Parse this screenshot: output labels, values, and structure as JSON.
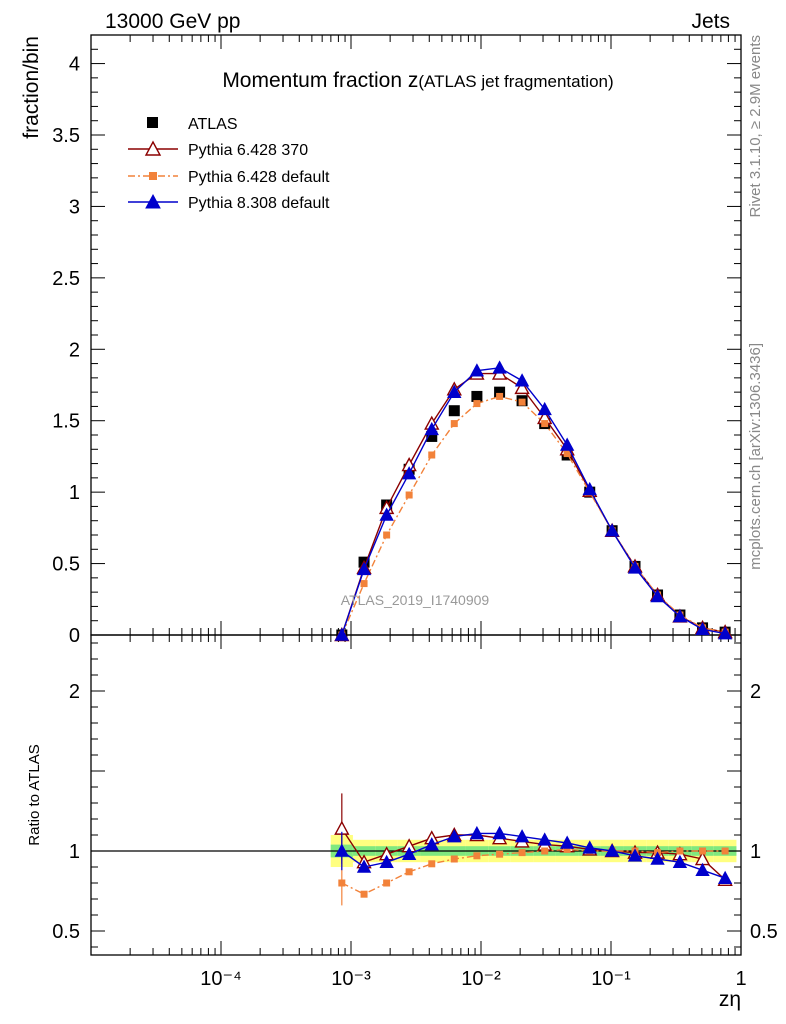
{
  "header": {
    "left": "13000 GeV pp",
    "right": "Jets"
  },
  "side_labels": {
    "rivet": "Rivet 3.1.10, ≥ 2.9M events",
    "mcplots": "mcplots.cern.ch [arXiv:1306.3436]"
  },
  "watermark": "ATLAS_2019_I1740909",
  "colors": {
    "atlas": "#000000",
    "pythia6_370": "#8b0000",
    "pythia6_default": "#f2823a",
    "pythia8_default": "#0000cc",
    "band_inner": "#7fe87f",
    "band_outer": "#ffff80"
  },
  "chart_data": [
    {
      "type": "line",
      "panel": "main",
      "title_main": "Momentum fraction z",
      "title_sub": "(ATLAS jet fragmentation)",
      "ylabel": "fraction/bin",
      "xscale": "log",
      "xlim": [
        1e-05,
        1
      ],
      "ylim": [
        0,
        4.2
      ],
      "yticks": [
        0,
        0.5,
        1,
        1.5,
        2,
        2.5,
        3,
        3.5,
        4
      ],
      "ytick_labels": [
        "0",
        "0.5",
        "1",
        "1.5",
        "2",
        "2.5",
        "3",
        "3.5",
        "4"
      ],
      "legend_position": "top-left",
      "x": [
        0.00085,
        0.00126,
        0.00188,
        0.0028,
        0.00418,
        0.00623,
        0.0093,
        0.0139,
        0.0207,
        0.0309,
        0.046,
        0.0686,
        0.102,
        0.153,
        0.228,
        0.339,
        0.506,
        0.755
      ],
      "series": [
        {
          "name": "ATLAS",
          "values": [
            0.0,
            0.51,
            0.91,
            1.16,
            1.39,
            1.57,
            1.67,
            1.7,
            1.64,
            1.48,
            1.26,
            1.0,
            0.73,
            0.48,
            0.28,
            0.14,
            0.05,
            0.02
          ]
        },
        {
          "name": "Pythia 6.428 370",
          "values": [
            0.0,
            0.47,
            0.89,
            1.19,
            1.48,
            1.72,
            1.83,
            1.83,
            1.73,
            1.52,
            1.3,
            1.01,
            0.73,
            0.48,
            0.28,
            0.13,
            0.05,
            0.02
          ]
        },
        {
          "name": "Pythia 6.428 default",
          "values": [
            0.0,
            0.36,
            0.7,
            0.98,
            1.26,
            1.48,
            1.62,
            1.67,
            1.63,
            1.48,
            1.27,
            1.0,
            0.73,
            0.48,
            0.28,
            0.14,
            0.05,
            0.02
          ]
        },
        {
          "name": "Pythia 8.308 default",
          "values": [
            0.0,
            0.46,
            0.84,
            1.13,
            1.44,
            1.7,
            1.85,
            1.87,
            1.78,
            1.58,
            1.33,
            1.02,
            0.73,
            0.47,
            0.27,
            0.13,
            0.04,
            0.01
          ]
        }
      ]
    },
    {
      "type": "line",
      "panel": "ratio",
      "ylabel": "Ratio to ATLAS",
      "xlabel": "zη",
      "xscale": "log",
      "xlim": [
        1e-05,
        1
      ],
      "ylim": [
        0.35,
        2.35
      ],
      "yticks": [
        0.5,
        1,
        2
      ],
      "ytick_labels": [
        "0.5",
        "1",
        "2"
      ],
      "xticks": [
        0.0001,
        0.001,
        0.01,
        0.1,
        1
      ],
      "xtick_labels": [
        "10⁻⁴",
        "10⁻³",
        "10⁻²",
        "10⁻¹",
        "1"
      ],
      "x": [
        0.00085,
        0.00126,
        0.00188,
        0.0028,
        0.00418,
        0.00623,
        0.0093,
        0.0139,
        0.0207,
        0.0309,
        0.046,
        0.0686,
        0.102,
        0.153,
        0.228,
        0.339,
        0.506,
        0.755
      ],
      "series": [
        {
          "name": "Pythia 6.428 370",
          "values": [
            1.14,
            0.93,
            0.98,
            1.03,
            1.08,
            1.1,
            1.1,
            1.08,
            1.06,
            1.04,
            1.03,
            1.01,
            1.0,
            0.99,
            0.99,
            0.98,
            0.95,
            0.82
          ]
        },
        {
          "name": "Pythia 6.428 default",
          "values": [
            0.8,
            0.73,
            0.8,
            0.87,
            0.92,
            0.95,
            0.97,
            0.98,
            0.99,
            1.0,
            1.01,
            1.0,
            1.0,
            1.0,
            0.99,
            1.0,
            1.0,
            1.0
          ]
        },
        {
          "name": "Pythia 8.308 default",
          "values": [
            1.0,
            0.9,
            0.93,
            0.98,
            1.04,
            1.09,
            1.11,
            1.11,
            1.09,
            1.07,
            1.05,
            1.02,
            1.0,
            0.97,
            0.95,
            0.93,
            0.88,
            0.83
          ]
        }
      ]
    }
  ]
}
